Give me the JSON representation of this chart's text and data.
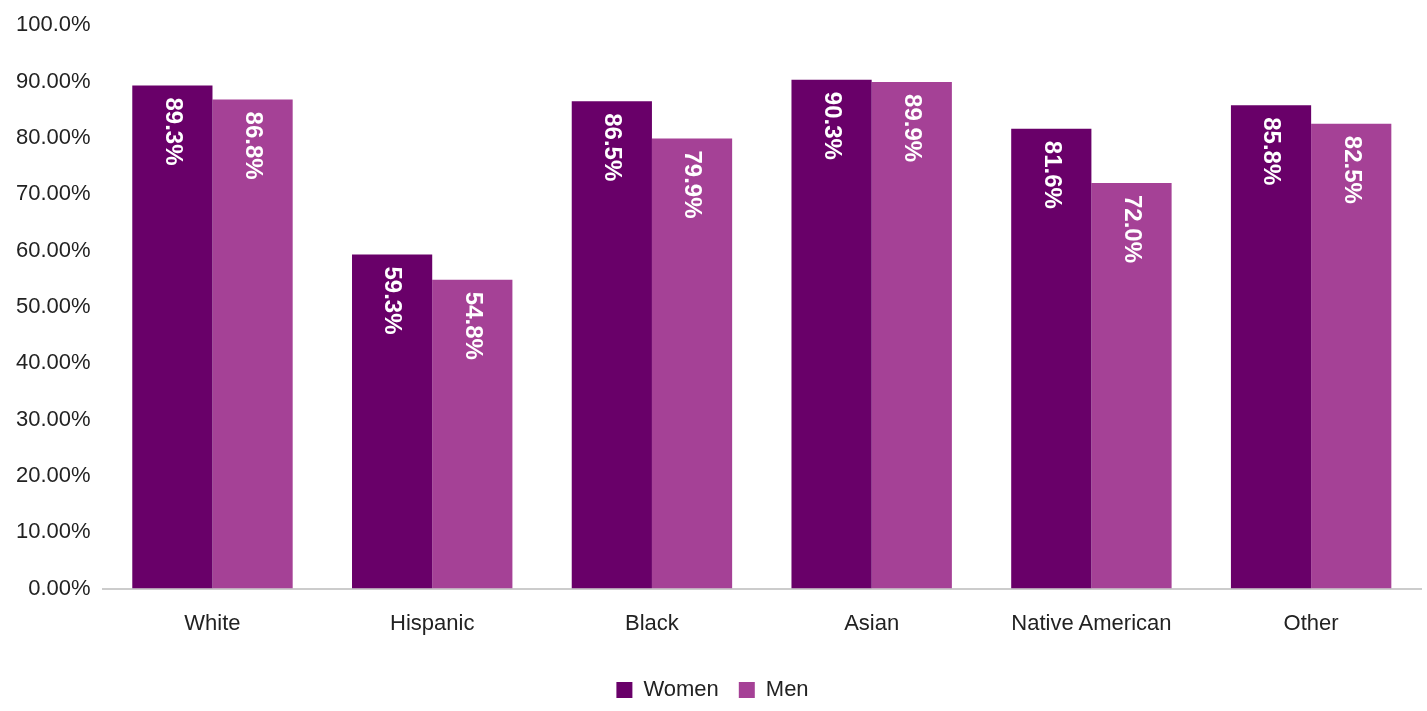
{
  "chart_data": {
    "type": "bar",
    "categories": [
      "White",
      "Hispanic",
      "Black",
      "Asian",
      "Native American",
      "Other"
    ],
    "series": [
      {
        "name": "Women",
        "color": "#690069",
        "values": [
          89.3,
          59.3,
          86.5,
          90.3,
          81.6,
          85.8
        ],
        "value_labels": [
          "89.3%",
          "59.3%",
          "86.5%",
          "90.3%",
          "81.6%",
          "85.8%"
        ]
      },
      {
        "name": "Men",
        "color": "#a54196",
        "values": [
          86.8,
          54.8,
          79.9,
          89.9,
          72.0,
          82.5
        ],
        "value_labels": [
          "86.8%",
          "54.8%",
          "79.9%",
          "89.9%",
          "72.0%",
          "82.5%"
        ]
      }
    ],
    "ylim": [
      0,
      100
    ],
    "yticks": [
      {
        "value": 0,
        "label": "0.00%"
      },
      {
        "value": 10,
        "label": "10.00%"
      },
      {
        "value": 20,
        "label": "20.00%"
      },
      {
        "value": 30,
        "label": "30.00%"
      },
      {
        "value": 40,
        "label": "40.00%"
      },
      {
        "value": 50,
        "label": "50.00%"
      },
      {
        "value": 60,
        "label": "60.00%"
      },
      {
        "value": 70,
        "label": "70.00%"
      },
      {
        "value": 80,
        "label": "80.00%"
      },
      {
        "value": 90,
        "label": "90.00%"
      },
      {
        "value": 100,
        "label": "100.0%"
      }
    ],
    "grid": false,
    "legend": "bottom"
  }
}
